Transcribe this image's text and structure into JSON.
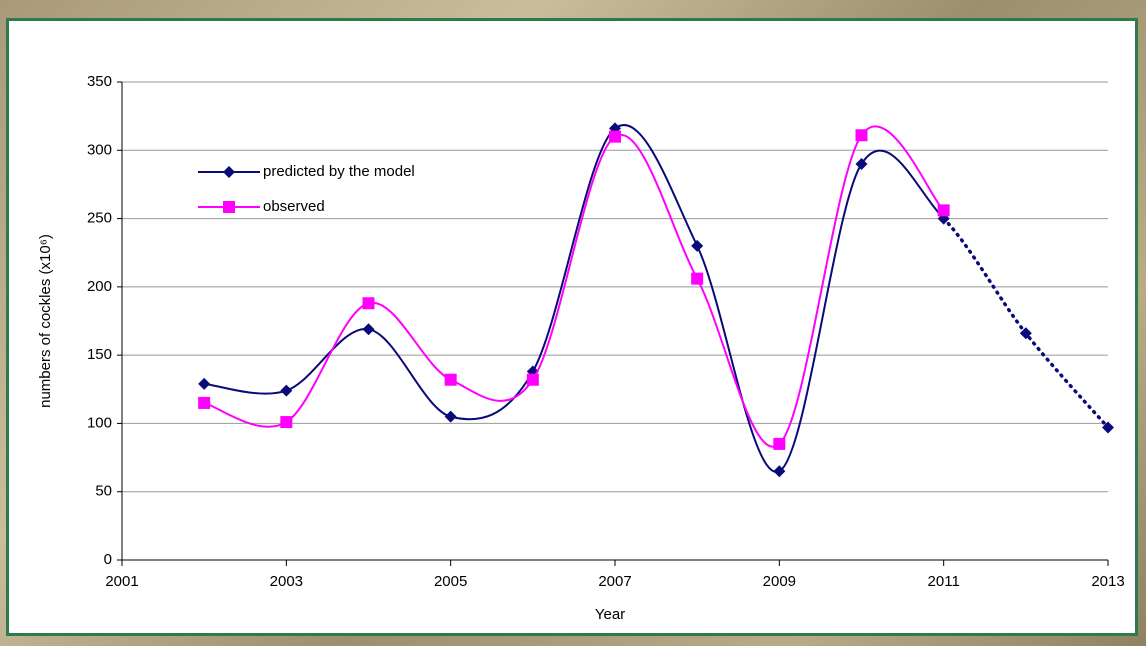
{
  "chart_data": {
    "type": "line",
    "x_label": "Year",
    "y_label": "numbers of cockles (x10⁶)",
    "x": [
      2002,
      2003,
      2004,
      2005,
      2006,
      2007,
      2008,
      2009,
      2010,
      2011,
      2012,
      2013
    ],
    "series": [
      {
        "name": "predicted by the model",
        "color": "#0a0a78",
        "marker": "diamond",
        "dotted_from_x": 2011,
        "values": [
          129,
          124,
          169,
          105,
          138,
          316,
          230,
          65,
          290,
          250,
          166,
          97
        ]
      },
      {
        "name": "observed",
        "color": "#ff00ff",
        "marker": "square",
        "values": [
          115,
          101,
          188,
          132,
          132,
          310,
          206,
          85,
          311,
          256,
          null,
          null
        ]
      }
    ],
    "xlim": [
      2001,
      2013
    ],
    "xticks": [
      2001,
      2003,
      2005,
      2007,
      2009,
      2011,
      2013
    ],
    "ylim": [
      0,
      350
    ],
    "yticks": [
      0,
      50,
      100,
      150,
      200,
      250,
      300,
      350
    ],
    "grid": true,
    "smooth": true,
    "legend": "upper left"
  }
}
